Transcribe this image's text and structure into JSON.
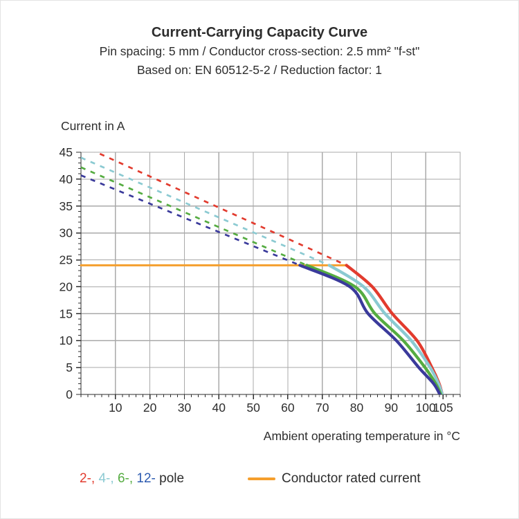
{
  "header": {
    "title": "Current-Carrying Capacity Curve",
    "subtitle1": "Pin spacing: 5 mm / Conductor cross-section: 2.5 mm² \"f-st\"",
    "subtitle2": "Based on: EN 60512-5-2 / Reduction factor: 1"
  },
  "legend": {
    "pole_entries": [
      {
        "text": "2-",
        "color": "#E23B2E"
      },
      {
        "text": ", ",
        "color": "#E23B2E"
      },
      {
        "text": "4-",
        "color": "#8BCAD2"
      },
      {
        "text": ", ",
        "color": "#8BCAD2"
      },
      {
        "text": "6-",
        "color": "#55AC41"
      },
      {
        "text": ", ",
        "color": "#55AC41"
      },
      {
        "text": "12-",
        "color": "#2C5BB0"
      },
      {
        "text": " pole",
        "color": "#2D2D2D"
      }
    ],
    "rated_label": "Conductor rated current",
    "rated_color": "#F59F2D"
  },
  "chart_data": {
    "type": "line",
    "title": "Current-Carrying Capacity Curve",
    "xlabel": "Ambient operating temperature in °C",
    "ylabel": "Current in A",
    "xlim": [
      0,
      110
    ],
    "ylim": [
      0,
      45
    ],
    "x_major_ticks": [
      10,
      20,
      30,
      40,
      50,
      60,
      70,
      80,
      90,
      100,
      105
    ],
    "x_minor_step": 2,
    "y_major_ticks": [
      0,
      5,
      10,
      15,
      20,
      25,
      30,
      35,
      40,
      45
    ],
    "y_minor_step": 1,
    "grid": true,
    "axis_color": "#2D2D2D",
    "grid_color": "#A9A9A9",
    "rated_current_line": {
      "label": "Conductor rated current",
      "color": "#F59F2D",
      "y": 24,
      "x_start": 0,
      "x_end": 77
    },
    "series": [
      {
        "name": "2-pole",
        "color": "#E23B2E",
        "dashed_points": [
          [
            0,
            46.3
          ],
          [
            77,
            24
          ]
        ],
        "solid_points": [
          [
            77,
            24
          ],
          [
            84.5,
            20
          ],
          [
            90.3,
            15
          ],
          [
            97.5,
            10
          ],
          [
            101.8,
            5
          ],
          [
            103.9,
            2
          ],
          [
            104.8,
            0
          ]
        ]
      },
      {
        "name": "4-pole",
        "color": "#8BCAD2",
        "dashed_points": [
          [
            0,
            44.0
          ],
          [
            72,
            24
          ]
        ],
        "solid_points": [
          [
            72,
            24
          ],
          [
            82,
            20
          ],
          [
            88.2,
            15
          ],
          [
            95.8,
            10
          ],
          [
            101.3,
            5
          ],
          [
            103.7,
            2
          ],
          [
            104.8,
            0
          ]
        ]
      },
      {
        "name": "6-pole",
        "color": "#55AC41",
        "dashed_points": [
          [
            0,
            42.2
          ],
          [
            65.5,
            24
          ]
        ],
        "solid_points": [
          [
            65.5,
            24
          ],
          [
            79.5,
            20
          ],
          [
            85.3,
            15
          ],
          [
            93.5,
            10
          ],
          [
            99.8,
            5
          ],
          [
            102.9,
            2
          ],
          [
            104.4,
            0
          ]
        ]
      },
      {
        "name": "12-pole",
        "color": "#3A3A9B",
        "dashed_points": [
          [
            0,
            40.7
          ],
          [
            63.5,
            24
          ]
        ],
        "solid_points": [
          [
            63.5,
            24
          ],
          [
            78,
            20
          ],
          [
            83.3,
            15
          ],
          [
            91.5,
            10
          ],
          [
            98,
            5
          ],
          [
            102.3,
            2
          ],
          [
            104.1,
            0
          ]
        ]
      }
    ]
  }
}
